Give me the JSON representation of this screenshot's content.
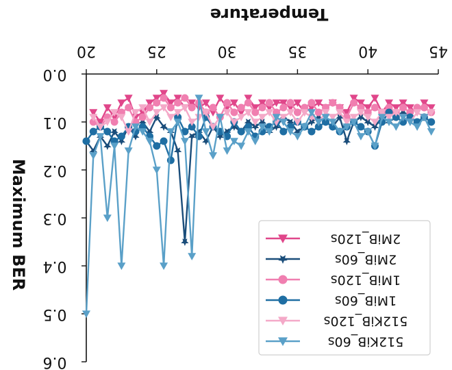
{
  "chart_data": {
    "type": "line",
    "title": "",
    "xlabel": "Temperature",
    "ylabel": "Maximum BER",
    "xlim": [
      20,
      45
    ],
    "ylim": [
      0.0,
      0.6
    ],
    "xticks": [
      20,
      25,
      30,
      35,
      40,
      45
    ],
    "yticks": [
      0.0,
      0.1,
      0.2,
      0.3,
      0.4,
      0.5,
      0.6
    ],
    "xtick_labels": [
      "20",
      "25",
      "30",
      "35",
      "40",
      "45"
    ],
    "ytick_labels": [
      "0.0",
      "0.1",
      "0.2",
      "0.3",
      "0.4",
      "0.5",
      "0.6"
    ],
    "orientation": "mirrored horizontally and vertically",
    "x_axis_position": "top",
    "y_axis_position": "left",
    "y_inverted": true,
    "grid": false,
    "legend_position": "bottom-right",
    "legend": [
      "2MiB_120s",
      "2MiB_60s",
      "1MiB_120s",
      "1MiB_60s",
      "512KiB_120s",
      "512KiB_60s"
    ],
    "series": [
      {
        "name": "2MiB_120s",
        "color": "#e0468a",
        "marker": "tri_down",
        "x": [
          20.5,
          21,
          21.5,
          22,
          22.5,
          23,
          23.5,
          24,
          24.5,
          25,
          25.5,
          26,
          26.5,
          27,
          27.5,
          28,
          28.5,
          29,
          29.5,
          30,
          30.5,
          31,
          31.5,
          32,
          32.5,
          33,
          33.5,
          34,
          34.5,
          35,
          35.5,
          36,
          36.5,
          37,
          37.5,
          38,
          38.5,
          39,
          39.5,
          40,
          40.5,
          41,
          41.5,
          42,
          42.5,
          43,
          43.5,
          44,
          44.5
        ],
        "y": [
          0.08,
          0.1,
          0.07,
          0.09,
          0.06,
          0.05,
          0.09,
          0.08,
          0.06,
          0.05,
          0.04,
          0.06,
          0.05,
          0.07,
          0.06,
          0.07,
          0.06,
          0.08,
          0.05,
          0.07,
          0.06,
          0.08,
          0.05,
          0.07,
          0.06,
          0.07,
          0.06,
          0.06,
          0.07,
          0.06,
          0.08,
          0.07,
          0.06,
          0.07,
          0.06,
          0.07,
          0.08,
          0.05,
          0.06,
          0.07,
          0.05,
          0.08,
          0.06,
          0.07,
          0.06,
          0.07,
          0.08,
          0.06,
          0.07
        ]
      },
      {
        "name": "2MiB_60s",
        "color": "#1a4d7a",
        "marker": "star",
        "x": [
          20,
          20.5,
          21,
          21.5,
          22,
          22.5,
          23,
          23.5,
          24,
          24.5,
          25,
          25.5,
          26,
          26.5,
          27,
          27.5,
          28,
          28.5,
          29,
          29.5,
          30,
          30.5,
          31,
          31.5,
          32,
          32.5,
          33,
          33.5,
          34,
          34.5,
          35,
          35.5,
          36,
          36.5,
          37,
          37.5,
          38,
          38.5,
          39,
          39.5,
          40,
          40.5,
          41,
          41.5,
          42,
          42.5,
          43,
          43.5,
          44,
          44.5
        ],
        "y": [
          0.14,
          0.16,
          0.13,
          0.15,
          0.12,
          0.14,
          0.11,
          0.13,
          0.1,
          0.12,
          0.09,
          0.11,
          0.12,
          0.16,
          0.35,
          0.13,
          0.12,
          0.14,
          0.11,
          0.13,
          0.12,
          0.11,
          0.12,
          0.1,
          0.11,
          0.1,
          0.12,
          0.11,
          0.09,
          0.1,
          0.12,
          0.11,
          0.1,
          0.09,
          0.1,
          0.11,
          0.09,
          0.14,
          0.1,
          0.09,
          0.1,
          0.11,
          0.09,
          0.1,
          0.09,
          0.08,
          0.09,
          0.1,
          0.09,
          0.1
        ]
      },
      {
        "name": "1MiB_120s",
        "color": "#f07fb0",
        "marker": "circle",
        "x": [
          20.5,
          21,
          21.5,
          22,
          22.5,
          23,
          23.5,
          24,
          24.5,
          25,
          25.5,
          26,
          26.5,
          27,
          27.5,
          28,
          28.5,
          29,
          29.5,
          30,
          30.5,
          31,
          31.5,
          32,
          32.5,
          33,
          33.5,
          34,
          34.5,
          35,
          35.5,
          36,
          36.5,
          37,
          37.5,
          38,
          38.5,
          39,
          39.5,
          40,
          40.5,
          41,
          41.5,
          42,
          42.5,
          43,
          43.5,
          44,
          44.5
        ],
        "y": [
          0.1,
          0.11,
          0.09,
          0.1,
          0.08,
          0.07,
          0.1,
          0.09,
          0.07,
          0.06,
          0.05,
          0.07,
          0.06,
          0.05,
          0.07,
          0.06,
          0.08,
          0.07,
          0.09,
          0.06,
          0.08,
          0.07,
          0.06,
          0.08,
          0.07,
          0.06,
          0.08,
          0.07,
          0.06,
          0.08,
          0.07,
          0.06,
          0.08,
          0.07,
          0.06,
          0.07,
          0.09,
          0.06,
          0.07,
          0.08,
          0.07,
          0.08,
          0.07,
          0.08,
          0.07,
          0.08,
          0.07,
          0.07,
          0.08
        ]
      },
      {
        "name": "1MiB_60s",
        "color": "#1f6ea3",
        "marker": "circle",
        "x": [
          20,
          20.5,
          21,
          21.5,
          22,
          22.5,
          23,
          23.5,
          24,
          24.5,
          25,
          25.5,
          26,
          26.5,
          27,
          27.5,
          28,
          28.5,
          29,
          29.5,
          30,
          30.5,
          31,
          31.5,
          32,
          32.5,
          33,
          33.5,
          34,
          34.5,
          35,
          35.5,
          36,
          36.5,
          37,
          37.5,
          38,
          38.5,
          39,
          39.5,
          40,
          40.5,
          41,
          41.5,
          42,
          42.5,
          43,
          43.5,
          44,
          44.5
        ],
        "y": [
          0.14,
          0.12,
          0.11,
          0.12,
          0.14,
          0.13,
          0.11,
          0.12,
          0.11,
          0.13,
          0.15,
          0.14,
          0.18,
          0.09,
          0.12,
          0.11,
          0.13,
          0.09,
          0.11,
          0.12,
          0.13,
          0.1,
          0.12,
          0.11,
          0.13,
          0.12,
          0.11,
          0.1,
          0.12,
          0.11,
          0.1,
          0.11,
          0.12,
          0.11,
          0.1,
          0.11,
          0.12,
          0.11,
          0.1,
          0.11,
          0.12,
          0.15,
          0.1,
          0.08,
          0.09,
          0.1,
          0.09,
          0.1,
          0.09,
          0.1
        ]
      },
      {
        "name": "512KiB_120s",
        "color": "#f4a9c8",
        "marker": "tri_down",
        "x": [
          20.5,
          21,
          21.5,
          22,
          22.5,
          23,
          23.5,
          24,
          24.5,
          25,
          25.5,
          26,
          26.5,
          27,
          27.5,
          28,
          28.5,
          29,
          29.5,
          30,
          30.5,
          31,
          31.5,
          32,
          32.5,
          33,
          33.5,
          34,
          34.5,
          35,
          35.5,
          36,
          36.5,
          37,
          37.5,
          38,
          38.5,
          39,
          39.5,
          40,
          40.5,
          41,
          41.5,
          42,
          42.5,
          43,
          43.5,
          44,
          44.5
        ],
        "y": [
          0.09,
          0.11,
          0.1,
          0.08,
          0.09,
          0.12,
          0.08,
          0.07,
          0.1,
          0.08,
          0.07,
          0.09,
          0.08,
          0.07,
          0.1,
          0.09,
          0.08,
          0.11,
          0.09,
          0.08,
          0.1,
          0.09,
          0.08,
          0.1,
          0.09,
          0.08,
          0.1,
          0.09,
          0.08,
          0.1,
          0.08,
          0.09,
          0.1,
          0.08,
          0.09,
          0.08,
          0.1,
          0.09,
          0.08,
          0.09,
          0.1,
          0.08,
          0.09,
          0.08,
          0.09,
          0.1,
          0.08,
          0.09,
          0.08
        ]
      },
      {
        "name": "512KiB_60s",
        "color": "#5aa0c8",
        "marker": "tri_down",
        "x": [
          20,
          20.5,
          21,
          21.5,
          22,
          22.5,
          23,
          23.5,
          24,
          24.5,
          25,
          25.5,
          26,
          26.5,
          27,
          27.5,
          28,
          28.5,
          29,
          29.5,
          30,
          30.5,
          31,
          31.5,
          32,
          32.5,
          33,
          33.5,
          34,
          34.5,
          35,
          35.5,
          36,
          36.5,
          37,
          37.5,
          38,
          38.5,
          39,
          39.5,
          40,
          40.5,
          41,
          41.5,
          42,
          42.5,
          43,
          43.5,
          44,
          44.5
        ],
        "y": [
          0.5,
          0.17,
          0.13,
          0.3,
          0.15,
          0.4,
          0.16,
          0.11,
          0.12,
          0.14,
          0.2,
          0.4,
          0.12,
          0.1,
          0.14,
          0.38,
          0.05,
          0.12,
          0.17,
          0.09,
          0.16,
          0.14,
          0.15,
          0.12,
          0.14,
          0.11,
          0.12,
          0.09,
          0.1,
          0.12,
          0.13,
          0.11,
          0.08,
          0.1,
          0.09,
          0.1,
          0.12,
          0.11,
          0.1,
          0.13,
          0.12,
          0.15,
          0.09,
          0.1,
          0.11,
          0.09,
          0.1,
          0.11,
          0.09,
          0.12
        ]
      }
    ]
  }
}
